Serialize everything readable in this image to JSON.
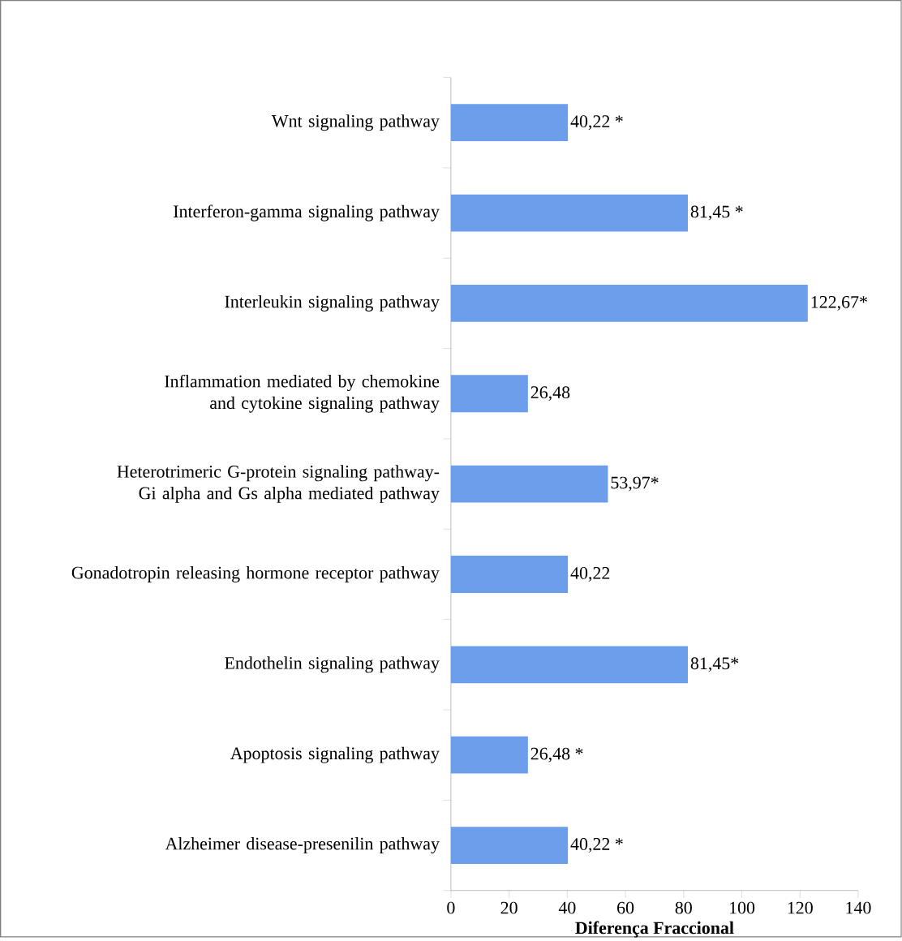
{
  "chart_data": {
    "type": "bar",
    "orientation": "horizontal",
    "xlabel": "Diferença Fraccional",
    "categories": [
      "Wnt signaling pathway",
      "Interferon-gamma signaling pathway",
      "Interleukin signaling pathway",
      "Inflammation mediated by chemokine and cytokine signaling pathway",
      "Heterotrimeric G-protein signaling pathway-Gi alpha and Gs alpha mediated pathway",
      "Gonadotropin releasing hormone receptor pathway",
      "Endothelin signaling pathway",
      "Apoptosis signaling pathway",
      "Alzheimer disease-presenilin pathway"
    ],
    "values": [
      40.22,
      81.45,
      122.67,
      26.48,
      53.97,
      40.22,
      81.45,
      26.48,
      40.22
    ],
    "value_labels": [
      "40,22 *",
      "81,45 *",
      "122,67*",
      "26,48",
      "53,97*",
      "40,22",
      "81,45*",
      "26,48 *",
      "40,22 *"
    ],
    "color": "#6d9eeb",
    "xlim": [
      0,
      140
    ],
    "xticks": [
      0,
      20,
      40,
      60,
      80,
      100,
      120,
      140
    ],
    "grid": false
  }
}
